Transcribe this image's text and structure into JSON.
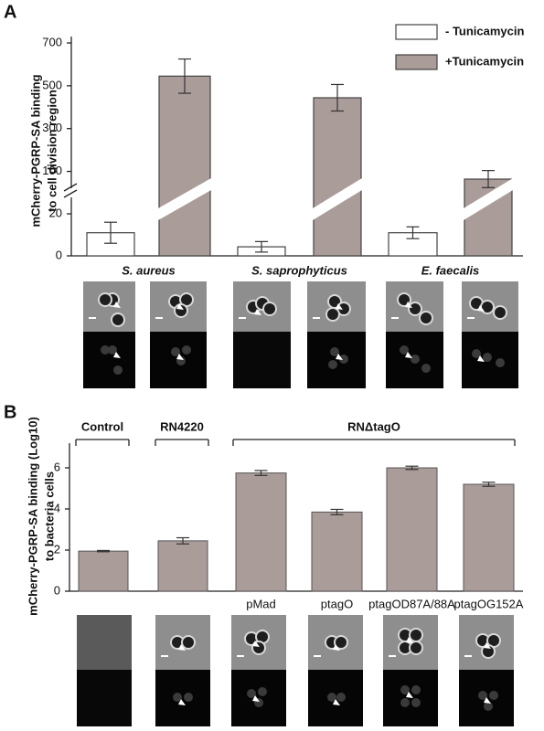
{
  "chart_data": [
    {
      "type": "bar",
      "label": "A",
      "ylabel": [
        "mCherry-PGRP-SA binding",
        "to cell division region"
      ],
      "categories": [
        "S. aureus",
        "S. saprophyticus",
        "E. faecalis"
      ],
      "series": [
        {
          "name": "- Tunicamycin",
          "color": "#ffffff",
          "values": [
            11,
            4.3,
            11
          ],
          "errors": [
            5,
            2.5,
            2.8
          ]
        },
        {
          "name": "+Tunicamycin",
          "color": "#aa9c99",
          "values": [
            545,
            444,
            64
          ],
          "errors": [
            80,
            62,
            40
          ],
          "axis": "y2"
        }
      ],
      "ylim": [
        0,
        20
      ],
      "yticks": [
        0,
        20
      ],
      "y2lim": [
        0,
        700
      ],
      "y2ticks": [
        100,
        300,
        500,
        700
      ],
      "legend": "upper right"
    },
    {
      "type": "bar",
      "label": "B",
      "ylabel": [
        "mCherry-PGRP-SA binding (Log10)",
        "to bacteria cells"
      ],
      "categories": [
        null,
        null,
        "pMad",
        "ptagO",
        "ptagOD87A/88A",
        "ptagOG152A"
      ],
      "groups": [
        {
          "label": "Control",
          "members": [
            0
          ]
        },
        {
          "label": "RN4220",
          "members": [
            1
          ]
        },
        {
          "label": "RNΔtagO",
          "members": [
            2,
            3,
            4,
            5
          ]
        }
      ],
      "color": "#aa9c99",
      "values": [
        1.95,
        2.45,
        5.75,
        3.85,
        6.0,
        5.2
      ],
      "errors": [
        0.03,
        0.15,
        0.12,
        0.13,
        0.08,
        0.1
      ],
      "ylim": [
        0,
        7.2
      ],
      "yticks": [
        0,
        2,
        4,
        6
      ]
    }
  ]
}
